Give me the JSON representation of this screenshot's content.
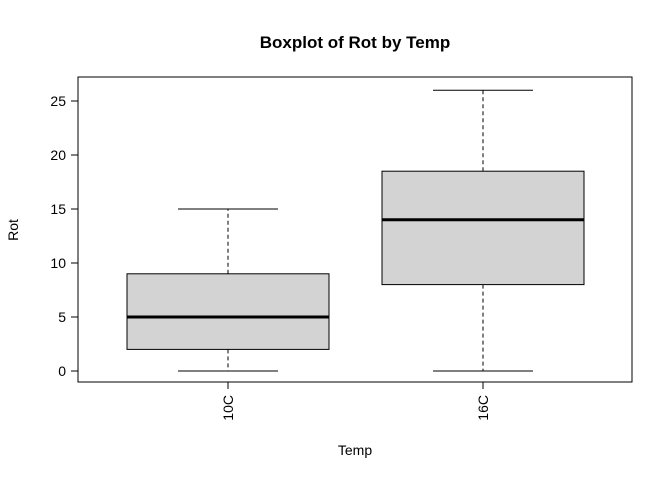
{
  "chart_data": {
    "type": "boxplot",
    "title": "Boxplot of Rot by Temp",
    "xlabel": "Temp",
    "ylabel": "Rot",
    "categories": [
      "10C",
      "16C"
    ],
    "boxes": [
      {
        "category": "10C",
        "min": 0,
        "q1": 2,
        "median": 5,
        "q3": 9,
        "max": 15
      },
      {
        "category": "16C",
        "min": 0,
        "q1": 8,
        "median": 14,
        "q3": 18.5,
        "max": 26
      }
    ],
    "yticks": [
      0,
      5,
      10,
      15,
      20,
      25
    ],
    "ylim": [
      -1,
      27
    ],
    "box_fill": "#d3d3d3",
    "grid": false
  }
}
